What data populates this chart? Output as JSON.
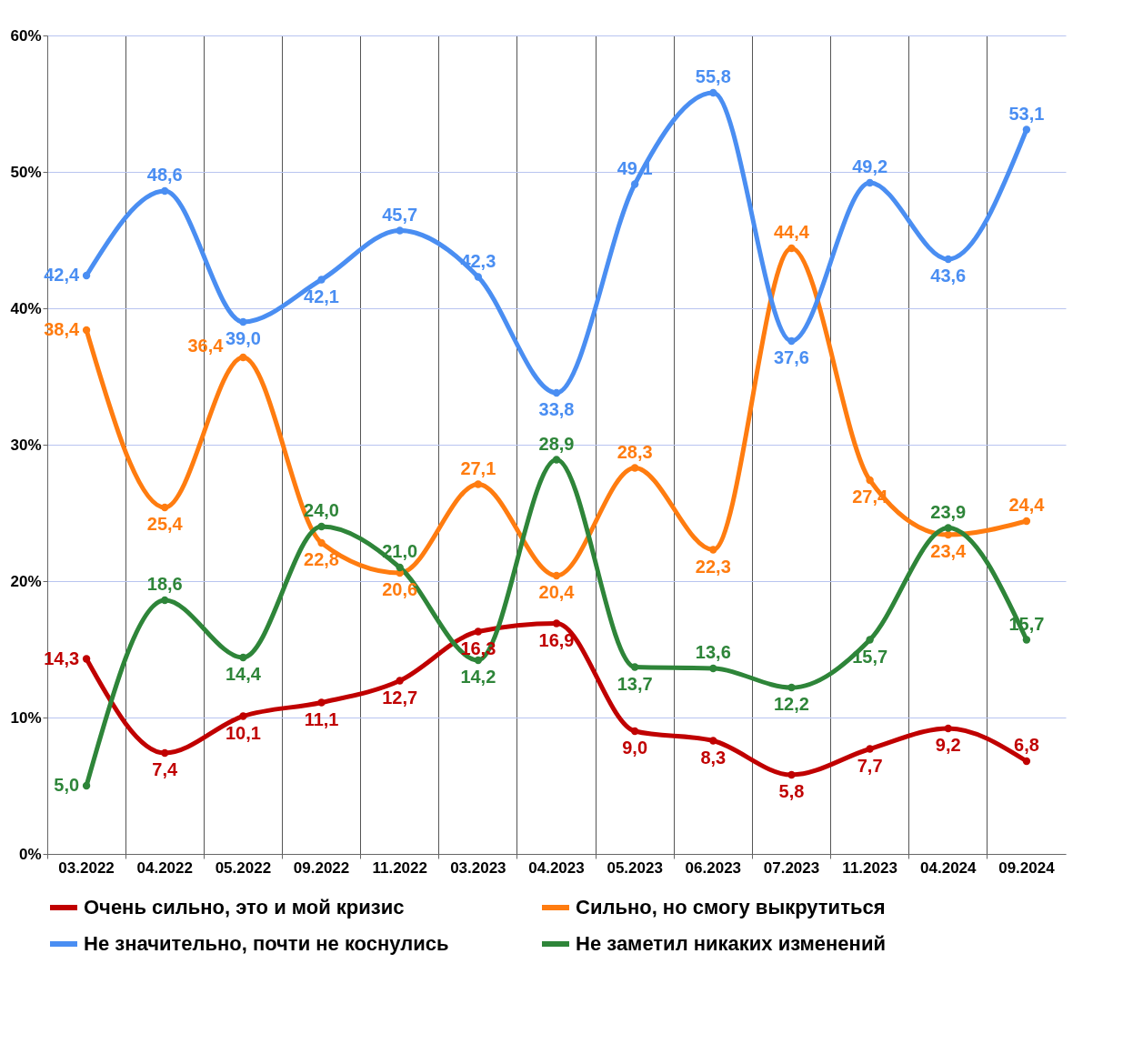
{
  "chart_data": {
    "type": "line",
    "categories": [
      "03.2022",
      "04.2022",
      "05.2022",
      "09.2022",
      "11.2022",
      "03.2023",
      "04.2023",
      "05.2023",
      "06.2023",
      "07.2023",
      "11.2023",
      "04.2024",
      "09.2024"
    ],
    "ylim": [
      0,
      60
    ],
    "yticks": [
      {
        "value": 0,
        "label": "0%"
      },
      {
        "value": 10,
        "label": "10%"
      },
      {
        "value": 20,
        "label": "20%"
      },
      {
        "value": 30,
        "label": "30%"
      },
      {
        "value": 40,
        "label": "40%"
      },
      {
        "value": 50,
        "label": "50%"
      },
      {
        "value": 60,
        "label": "60%"
      }
    ],
    "grid": true,
    "legend": "bottom",
    "marker": "circle",
    "line_style": "solid",
    "series": [
      {
        "name": "Очень сильно, это и мой кризис",
        "color": "#c00000",
        "values": [
          14.3,
          7.4,
          10.1,
          11.1,
          12.7,
          16.3,
          16.9,
          9.0,
          8.3,
          5.8,
          7.7,
          9.2,
          6.8
        ],
        "value_labels": [
          "14,3",
          "7,4",
          "10,1",
          "11,1",
          "12,7",
          "16,3",
          "16,9",
          "9,0",
          "8,3",
          "5,8",
          "7,7",
          "9,2",
          "6,8"
        ]
      },
      {
        "name": "Сильно, но смогу выкрутиться",
        "color": "#ff7c10",
        "values": [
          38.4,
          25.4,
          36.4,
          22.8,
          20.6,
          27.1,
          20.4,
          28.3,
          22.3,
          44.4,
          27.4,
          23.4,
          24.4
        ],
        "value_labels": [
          "38,4",
          "25,4",
          "36,4",
          "22,8",
          "20,6",
          "27,1",
          "20,4",
          "28,3",
          "22,3",
          "44,4",
          "27,4",
          "23,4",
          "24,4"
        ]
      },
      {
        "name": "Не значительно, почти не коснулись",
        "color": "#4a8ef2",
        "values": [
          42.4,
          48.6,
          39.0,
          42.1,
          45.7,
          42.3,
          33.8,
          49.1,
          55.8,
          37.6,
          49.2,
          43.6,
          53.1
        ],
        "value_labels": [
          "42,4",
          "48,6",
          "39,0",
          "42,1",
          "45,7",
          "42,3",
          "33,8",
          "49,1",
          "55,8",
          "37,6",
          "49,2",
          "43,6",
          "53,1"
        ]
      },
      {
        "name": "Не заметил никаких изменений",
        "color": "#2e8539",
        "values": [
          5.0,
          18.6,
          14.4,
          24.0,
          21.0,
          14.2,
          28.9,
          13.7,
          13.6,
          12.2,
          15.7,
          23.9,
          15.7
        ],
        "value_labels": [
          "5,0",
          "18,6",
          "14,4",
          "24,0",
          "21,0",
          "14,2",
          "28,9",
          "13,7",
          "13,6",
          "12,2",
          "15,7",
          "23,9",
          "15,7"
        ]
      }
    ]
  }
}
